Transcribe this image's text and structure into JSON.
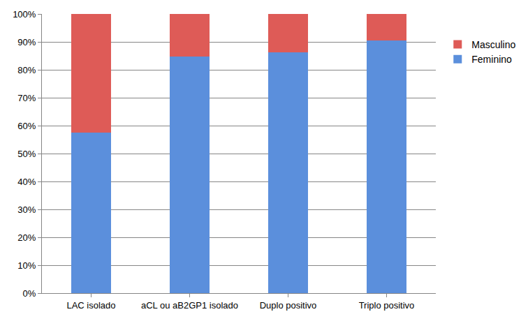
{
  "chart_data": {
    "type": "bar",
    "stacked": true,
    "categories": [
      "LAC isolado",
      "aCL ou aB2GP1 isolado",
      "Duplo positivo",
      "Triplo positivo"
    ],
    "series": [
      {
        "name": "Feminino",
        "color": "#5b8fdc",
        "values": [
          57.5,
          84.8,
          86.2,
          90.6
        ]
      },
      {
        "name": "Masculino",
        "color": "#de5b57",
        "values": [
          42.5,
          15.2,
          13.8,
          9.4
        ]
      }
    ],
    "ylim": [
      0,
      100
    ],
    "yticks": [
      {
        "value": 0,
        "label": "0%"
      },
      {
        "value": 10,
        "label": "10%"
      },
      {
        "value": 20,
        "label": "20%"
      },
      {
        "value": 30,
        "label": "30%"
      },
      {
        "value": 40,
        "label": "40%"
      },
      {
        "value": 50,
        "label": "50%"
      },
      {
        "value": 60,
        "label": "60%"
      },
      {
        "value": 70,
        "label": "70%"
      },
      {
        "value": 80,
        "label": "80%"
      },
      {
        "value": 90,
        "label": "90%"
      },
      {
        "value": 100,
        "label": "100%"
      }
    ],
    "grid": true,
    "legend": "right"
  }
}
